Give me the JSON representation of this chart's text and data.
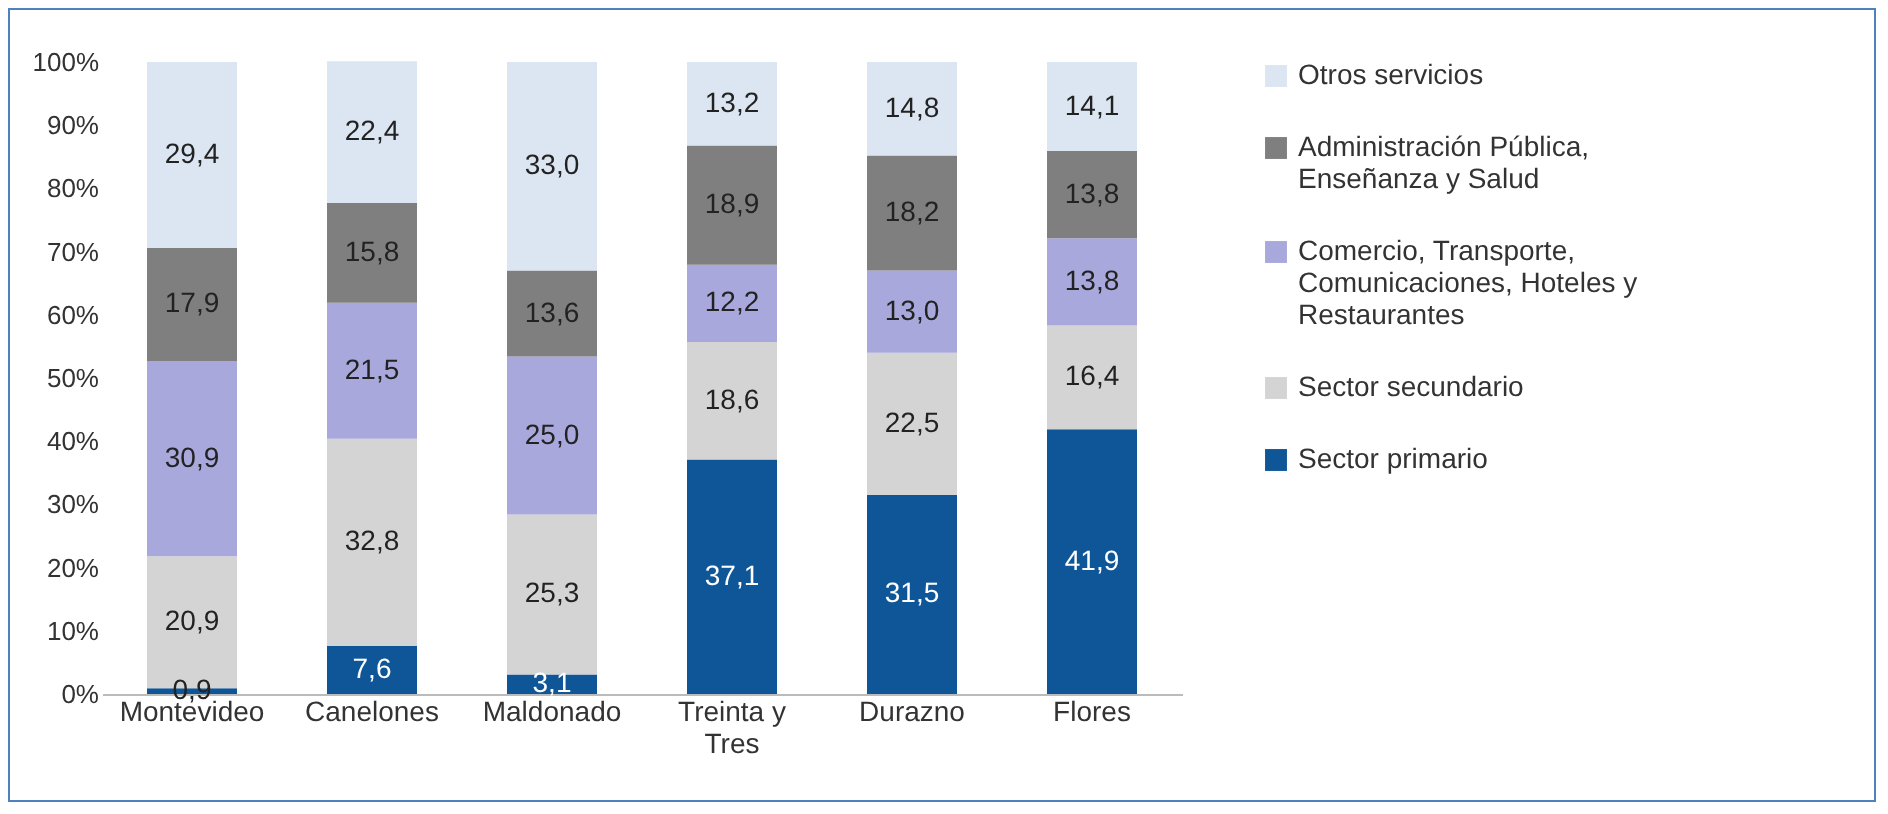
{
  "chart_data": {
    "type": "bar",
    "stacked": true,
    "categories": [
      "Montevideo",
      "Canelones",
      "Maldonado",
      "Treinta y Tres",
      "Durazno",
      "Flores"
    ],
    "series": [
      {
        "name": "Sector primario",
        "color": "#0f5698",
        "values": [
          0.9,
          7.6,
          3.1,
          37.1,
          31.5,
          41.9
        ],
        "value_labels": [
          "0,9",
          "7,6",
          "3,1",
          "37,1",
          "31,5",
          "41,9"
        ]
      },
      {
        "name": "Sector secundario",
        "color": "#d4d4d4",
        "values": [
          20.9,
          32.8,
          25.3,
          18.6,
          22.5,
          16.4
        ],
        "value_labels": [
          "20,9",
          "32,8",
          "25,3",
          "18,6",
          "22,5",
          "16,4"
        ]
      },
      {
        "name": "Comercio, Transporte, Comunicaciones, Hoteles y Restaurantes",
        "color": "#a8a8dc",
        "values": [
          30.9,
          21.5,
          25.0,
          12.2,
          13.0,
          13.8
        ],
        "value_labels": [
          "30,9",
          "21,5",
          "25,0",
          "12,2",
          "13,0",
          "13,8"
        ]
      },
      {
        "name": "Administración Pública, Enseñanza y Salud",
        "color": "#7f7f7f",
        "values": [
          17.9,
          15.8,
          13.6,
          18.9,
          18.2,
          13.8
        ],
        "value_labels": [
          "17,9",
          "15,8",
          "13,6",
          "18,9",
          "18,2",
          "13,8"
        ]
      },
      {
        "name": "Otros servicios",
        "color": "#dce6f2",
        "values": [
          29.4,
          22.4,
          33.0,
          13.2,
          14.8,
          14.1
        ],
        "value_labels": [
          "29,4",
          "22,4",
          "33,0",
          "13,2",
          "14,8",
          "14,1"
        ]
      }
    ],
    "ylim": [
      0,
      100
    ],
    "yticks": [
      {
        "value": 0,
        "label": "0%"
      },
      {
        "value": 10,
        "label": "10%"
      },
      {
        "value": 20,
        "label": "20%"
      },
      {
        "value": 30,
        "label": "30%"
      },
      {
        "value": 40,
        "label": "40%"
      },
      {
        "value": 50,
        "label": "50%"
      },
      {
        "value": 60,
        "label": "60%"
      },
      {
        "value": 70,
        "label": "70%"
      },
      {
        "value": 80,
        "label": "80%"
      },
      {
        "value": 90,
        "label": "90%"
      },
      {
        "value": 100,
        "label": "100%"
      }
    ],
    "legend": "right"
  }
}
